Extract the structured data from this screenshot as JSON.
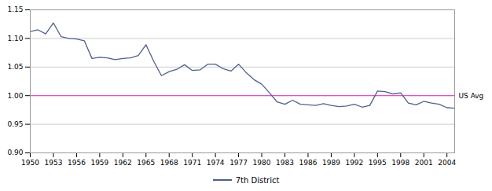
{
  "chart_data": {
    "type": "line",
    "x": [
      1950,
      1951,
      1952,
      1953,
      1954,
      1955,
      1956,
      1957,
      1958,
      1959,
      1960,
      1961,
      1962,
      1963,
      1964,
      1965,
      1966,
      1967,
      1968,
      1969,
      1970,
      1971,
      1972,
      1973,
      1974,
      1975,
      1976,
      1977,
      1978,
      1979,
      1980,
      1981,
      1982,
      1983,
      1984,
      1985,
      1986,
      1987,
      1988,
      1989,
      1990,
      1991,
      1992,
      1993,
      1994,
      1995,
      1996,
      1997,
      1998,
      1999,
      2000,
      2001,
      2002,
      2003,
      2004,
      2005
    ],
    "series": [
      {
        "name": "7th District",
        "color": "#4f5f8f",
        "values": [
          1.112,
          1.115,
          1.108,
          1.127,
          1.103,
          1.1,
          1.099,
          1.096,
          1.065,
          1.067,
          1.066,
          1.063,
          1.065,
          1.066,
          1.07,
          1.089,
          1.06,
          1.035,
          1.042,
          1.046,
          1.054,
          1.044,
          1.045,
          1.055,
          1.055,
          1.047,
          1.043,
          1.055,
          1.04,
          1.028,
          1.02,
          1.005,
          0.989,
          0.985,
          0.992,
          0.985,
          0.984,
          0.983,
          0.986,
          0.983,
          0.981,
          0.982,
          0.985,
          0.98,
          0.983,
          1.008,
          1.007,
          1.003,
          1.005,
          0.987,
          0.984,
          0.99,
          0.987,
          0.985,
          0.979,
          0.978
        ]
      }
    ],
    "annotations": [
      {
        "text": "US Avg",
        "y": 1.0,
        "color": "#dd55cc"
      }
    ],
    "xlim": [
      1950,
      2005
    ],
    "xticks": [
      1950,
      1953,
      1956,
      1959,
      1962,
      1965,
      1968,
      1971,
      1974,
      1977,
      1980,
      1983,
      1986,
      1989,
      1992,
      1995,
      1998,
      2001,
      2004
    ],
    "ylim": [
      0.9,
      1.15
    ],
    "yticks": [
      {
        "value": 0.9,
        "label": "0.90"
      },
      0.95,
      {
        "value": 1.0,
        "label": "1.00"
      },
      1.05,
      {
        "value": 1.1,
        "label": "1.10"
      },
      1.15
    ],
    "grid": "y",
    "legend": "bottom"
  }
}
